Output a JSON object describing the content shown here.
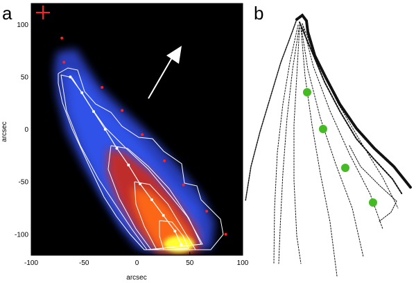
{
  "figure": {
    "panel_a": {
      "letter": "a",
      "xlabel": "arcsec",
      "ylabel": "arcsec",
      "x_ticks": [
        "-100",
        "-50",
        "0",
        "50",
        "100"
      ],
      "y_ticks": [
        "100",
        "50",
        "0",
        "-50",
        "-100"
      ],
      "xlim": [
        -100,
        100
      ],
      "ylim": [
        -120,
        120
      ],
      "colormap": "black-blue-red-yellow",
      "arrow_color": "#ffffff",
      "marker_color": "#ff2020",
      "contour_color": "#ffffff",
      "red_dots": [
        {
          "x": -71,
          "y": 87
        },
        {
          "x": -69,
          "y": 64
        },
        {
          "x": -33,
          "y": 40
        },
        {
          "x": -14,
          "y": 18
        },
        {
          "x": 5,
          "y": -5
        },
        {
          "x": 26,
          "y": -30
        },
        {
          "x": 44,
          "y": -53
        },
        {
          "x": 66,
          "y": -78
        },
        {
          "x": 84,
          "y": -100
        }
      ],
      "ridge_points": [
        {
          "x": -63,
          "y": 50
        },
        {
          "x": -52,
          "y": 35
        },
        {
          "x": -41,
          "y": 17
        },
        {
          "x": -30,
          "y": 0
        },
        {
          "x": -19,
          "y": -18
        },
        {
          "x": -8,
          "y": -34
        },
        {
          "x": 3,
          "y": -52
        },
        {
          "x": 14,
          "y": -67
        },
        {
          "x": 25,
          "y": -82
        },
        {
          "x": 36,
          "y": -97
        },
        {
          "x": 42,
          "y": -110
        }
      ]
    },
    "panel_b": {
      "letter": "b",
      "marker_color": "#44bb22"
    }
  }
}
